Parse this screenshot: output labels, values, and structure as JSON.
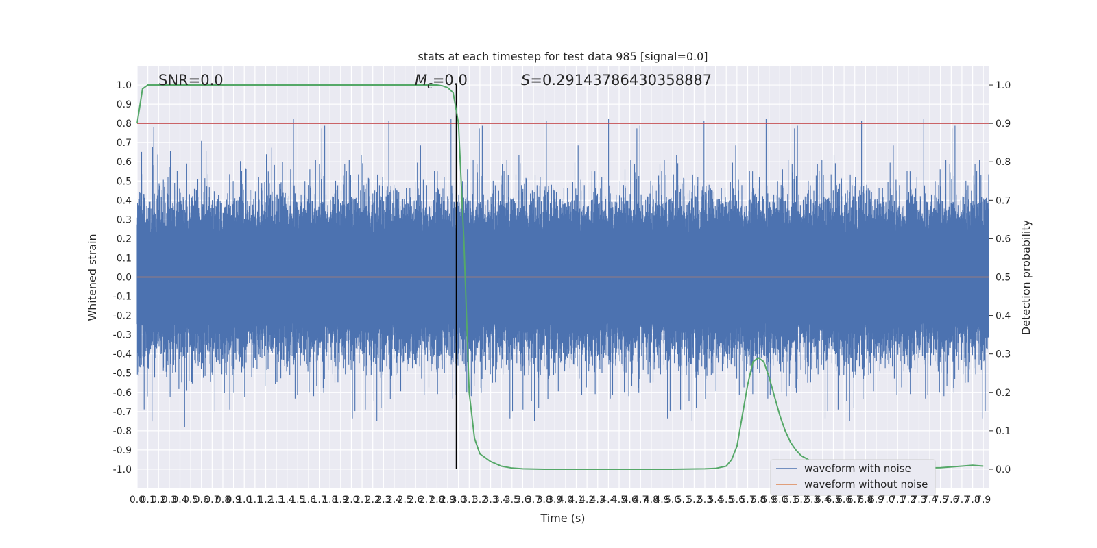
{
  "chart_data": {
    "type": "line",
    "title": "stats at each timestep for test data 985 [signal=0.0]",
    "xlabel": "Time (s)",
    "ylabel": "Whitened strain",
    "ylabel_right": "Detection probability",
    "xlim": [
      0.0,
      7.95
    ],
    "ylim": [
      -1.1,
      1.1
    ],
    "ylim_right": [
      -0.05,
      1.05
    ],
    "x_ticks": [
      "0.0",
      "0.1",
      "0.2",
      "0.3",
      "0.4",
      "0.5",
      "0.6",
      "0.7",
      "0.8",
      "0.9",
      "1.0",
      "1.1",
      "1.2",
      "1.3",
      "1.4",
      "1.5",
      "1.6",
      "1.7",
      "1.8",
      "1.9",
      "2.0",
      "2.1",
      "2.2",
      "2.3",
      "2.4",
      "2.5",
      "2.6",
      "2.7",
      "2.8",
      "2.9",
      "3.0",
      "3.1",
      "3.2",
      "3.3",
      "3.4",
      "3.5",
      "3.6",
      "3.7",
      "3.8",
      "3.9",
      "4.0",
      "4.1",
      "4.2",
      "4.3",
      "4.4",
      "4.5",
      "4.6",
      "4.7",
      "4.8",
      "4.9",
      "5.0",
      "5.1",
      "5.2",
      "5.3",
      "5.4",
      "5.5",
      "5.6",
      "5.7",
      "5.8",
      "5.9",
      "6.0",
      "6.1",
      "6.2",
      "6.3",
      "6.4",
      "6.5",
      "6.6",
      "6.7",
      "6.8",
      "6.9",
      "7.0",
      "7.1",
      "7.2",
      "7.3",
      "7.4",
      "7.5",
      "7.6",
      "7.7",
      "7.8",
      "7.9"
    ],
    "y_ticks": [
      "1.0",
      "0.9",
      "0.8",
      "0.7",
      "0.6",
      "0.5",
      "0.4",
      "0.3",
      "0.2",
      "0.1",
      "0.0",
      "-0.1",
      "-0.2",
      "-0.3",
      "-0.4",
      "-0.5",
      "-0.6",
      "-0.7",
      "-0.8",
      "-0.9",
      "-1.0"
    ],
    "y_ticks_right": [
      "1.0",
      "0.9",
      "0.8",
      "0.7",
      "0.6",
      "0.5",
      "0.4",
      "0.3",
      "0.2",
      "0.1",
      "0.0"
    ],
    "annotations": {
      "snr": "SNR=0.0",
      "mc_symbol": "M",
      "mc_sub": "c",
      "mc_value": "=0.0",
      "s_symbol": "S",
      "s_value": "=0.29143786430358887"
    },
    "threshold_strain": 0.8,
    "threshold_probability": 0.9,
    "detection_time": 2.98,
    "grid": true,
    "legend_position": "lower-right",
    "series": [
      {
        "name": "waveform with noise",
        "color": "#4c72b0",
        "kind": "noise",
        "envelope": 0.5,
        "peak_range": [
          -0.95,
          1.0
        ]
      },
      {
        "name": "waveform without noise",
        "color": "#dd8452",
        "constant": 0.0
      },
      {
        "color": "#55a868",
        "axis": "right",
        "x": [
          0.0,
          0.05,
          0.1,
          0.2,
          0.4,
          0.8,
          1.2,
          1.6,
          2.0,
          2.4,
          2.7,
          2.8,
          2.85,
          2.9,
          2.95,
          3.0,
          3.05,
          3.1,
          3.15,
          3.2,
          3.3,
          3.4,
          3.5,
          3.6,
          3.8,
          4.0,
          4.5,
          5.0,
          5.3,
          5.4,
          5.5,
          5.55,
          5.6,
          5.65,
          5.7,
          5.75,
          5.8,
          5.85,
          5.9,
          5.95,
          6.0,
          6.05,
          6.1,
          6.15,
          6.2,
          6.3,
          6.4,
          6.5,
          6.7,
          7.0,
          7.3,
          7.5,
          7.6,
          7.7,
          7.8,
          7.9
        ],
        "y": [
          0.9,
          0.99,
          1.0,
          1.0,
          1.0,
          1.0,
          1.0,
          1.0,
          1.0,
          1.0,
          1.0,
          1.0,
          0.998,
          0.993,
          0.98,
          0.9,
          0.6,
          0.2,
          0.08,
          0.04,
          0.02,
          0.008,
          0.003,
          0.001,
          0.0,
          0.0,
          0.0,
          0.0,
          0.001,
          0.002,
          0.008,
          0.025,
          0.06,
          0.14,
          0.22,
          0.28,
          0.29,
          0.28,
          0.24,
          0.19,
          0.14,
          0.1,
          0.07,
          0.05,
          0.035,
          0.02,
          0.012,
          0.007,
          0.004,
          0.003,
          0.003,
          0.004,
          0.006,
          0.008,
          0.01,
          0.008
        ]
      }
    ]
  }
}
